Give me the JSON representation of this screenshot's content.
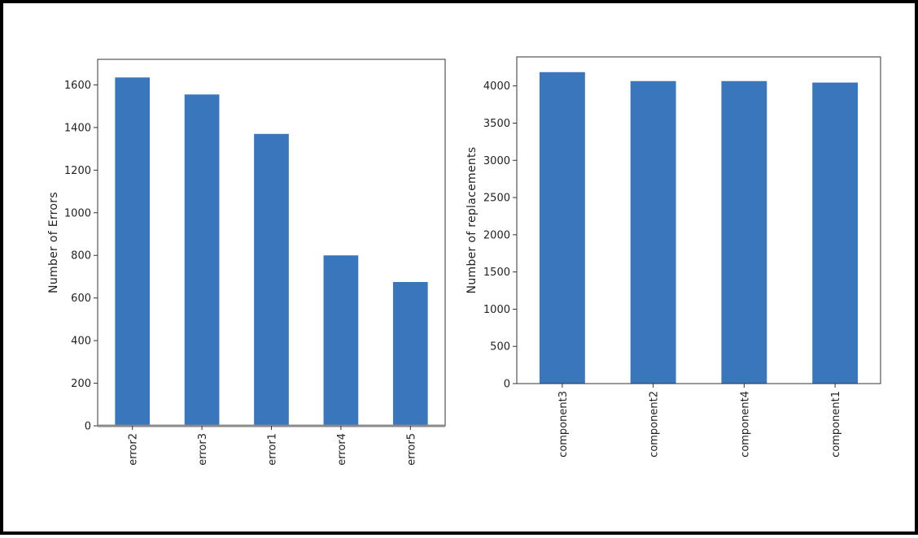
{
  "chart_data": [
    {
      "type": "bar",
      "title": "",
      "xlabel": "",
      "ylabel": "Number of Errors",
      "categories": [
        "error2",
        "error3",
        "error1",
        "error4",
        "error5"
      ],
      "values": [
        1635,
        1555,
        1370,
        800,
        675
      ],
      "ylim": [
        0,
        1720
      ],
      "yticks": [
        0,
        200,
        400,
        600,
        800,
        1000,
        1200,
        1400,
        1600
      ],
      "grid": false,
      "bar_color": "#3a76bb"
    },
    {
      "type": "bar",
      "title": "",
      "xlabel": "",
      "ylabel": "Number of replacements",
      "categories": [
        "component3",
        "component2",
        "component4",
        "component1"
      ],
      "values": [
        4185,
        4065,
        4065,
        4045
      ],
      "ylim": [
        0,
        4390
      ],
      "yticks": [
        0,
        500,
        1000,
        1500,
        2000,
        2500,
        3000,
        3500,
        4000
      ],
      "grid": false,
      "bar_color": "#3a76bb"
    }
  ]
}
